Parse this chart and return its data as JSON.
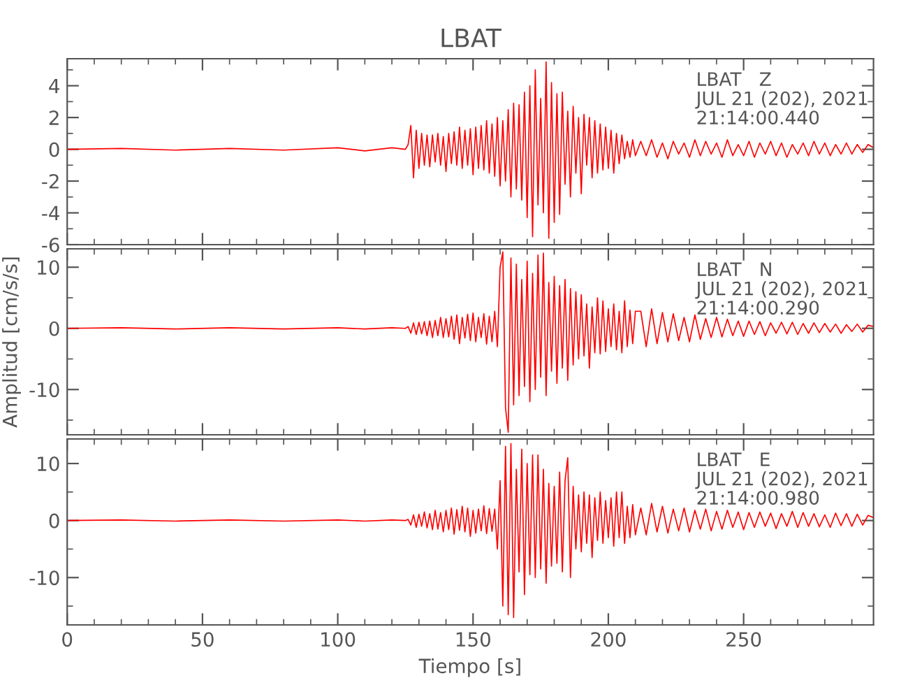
{
  "chart_data": [
    {
      "type": "line",
      "title": "LBAT",
      "annotations": [
        "LBAT   Z\nJUL 21 (202), 2021\n21:14:00.440"
      ],
      "xlim": [
        0,
        298
      ],
      "xticks": [
        0,
        50,
        100,
        150,
        200,
        250
      ],
      "ylim": [
        -6,
        5.7
      ],
      "yticks": [
        -6,
        -4,
        -2,
        0,
        2,
        4
      ],
      "tick_labels": "y",
      "series": [
        {
          "color": "#ff0000",
          "x": [
            0,
            20,
            40,
            60,
            80,
            100,
            110,
            120,
            125,
            126,
            127,
            128,
            129,
            130,
            131,
            132,
            133,
            134,
            135,
            136,
            137,
            138,
            139,
            140,
            141,
            142,
            143,
            144,
            145,
            146,
            147,
            148,
            149,
            150,
            151,
            152,
            153,
            154,
            155,
            156,
            157,
            158,
            159,
            160,
            161,
            162,
            163,
            164,
            165,
            166,
            167,
            168,
            169,
            170,
            171,
            172,
            173,
            174,
            175,
            176,
            177,
            178,
            179,
            180,
            181,
            182,
            183,
            184,
            185,
            186,
            187,
            188,
            189,
            190,
            191,
            192,
            193,
            194,
            195,
            196,
            197,
            198,
            199,
            200,
            201,
            202,
            203,
            204,
            205,
            206,
            207,
            208,
            209,
            210,
            212,
            214,
            216,
            218,
            220,
            222,
            224,
            226,
            228,
            230,
            232,
            234,
            236,
            238,
            240,
            242,
            244,
            246,
            248,
            250,
            252,
            254,
            256,
            258,
            260,
            262,
            264,
            266,
            268,
            270,
            272,
            274,
            276,
            278,
            280,
            282,
            284,
            286,
            288,
            290,
            292,
            294,
            296,
            298
          ],
          "values": [
            0,
            0.05,
            -0.05,
            0.05,
            -0.05,
            0.1,
            -0.1,
            0.1,
            0,
            0.3,
            1.5,
            -1.8,
            1.2,
            -1.2,
            1.0,
            -1.0,
            0.9,
            -1.1,
            0.9,
            -0.8,
            1.0,
            -1.0,
            0.8,
            -1.4,
            1.0,
            -0.9,
            1.1,
            -1.0,
            1.4,
            -1.2,
            1.2,
            -1.0,
            1.3,
            -1.6,
            1.4,
            -1.2,
            1.5,
            -1.3,
            1.8,
            -1.5,
            1.6,
            -1.7,
            2.0,
            -2.3,
            1.8,
            -2.0,
            2.5,
            -3.0,
            2.9,
            -2.5,
            2.8,
            -3.2,
            3.6,
            -4.3,
            4.0,
            -5.5,
            5.0,
            -3.5,
            3.2,
            -4.0,
            5.5,
            -5.6,
            4.2,
            -4.6,
            3.5,
            -4.1,
            3.6,
            -2.2,
            2.4,
            -3.0,
            2.7,
            -1.5,
            2.0,
            -2.8,
            2.2,
            -1.0,
            2.0,
            -1.8,
            1.8,
            -1.5,
            1.6,
            -1.3,
            1.4,
            -1.2,
            1.2,
            -1.5,
            1.0,
            -0.9,
            0.9,
            -0.6,
            0.5,
            -0.5,
            0.6,
            -0.4,
            0.5,
            -0.4,
            0.6,
            -0.5,
            0.4,
            -0.6,
            0.5,
            -0.3,
            0.4,
            -0.5,
            0.6,
            -0.4,
            0.5,
            -0.3,
            0.4,
            -0.5,
            0.6,
            -0.4,
            0.3,
            -0.4,
            0.5,
            -0.5,
            0.4,
            -0.3,
            0.5,
            -0.4,
            0.4,
            -0.5,
            0.3,
            -0.3,
            0.4,
            -0.4,
            0.5,
            -0.3,
            0.4,
            -0.4,
            0.3,
            -0.3,
            0.4,
            -0.3,
            0.3,
            -0.2,
            0.3,
            0.1
          ]
        }
      ]
    },
    {
      "type": "line",
      "ylabel": "Amplitud [cm/s/s]",
      "annotations": [
        "LBAT   N\nJUL 21 (202), 2021\n21:14:00.290"
      ],
      "xlim": [
        0,
        298
      ],
      "xticks": [
        0,
        50,
        100,
        150,
        200,
        250
      ],
      "ylim": [
        -17.4,
        13
      ],
      "yticks": [
        -10,
        0,
        10
      ],
      "tick_labels": "y",
      "series": [
        {
          "color": "#ff0000",
          "x": [
            0,
            20,
            40,
            60,
            80,
            100,
            110,
            120,
            125,
            126,
            127,
            128,
            129,
            130,
            131,
            132,
            133,
            134,
            135,
            136,
            137,
            138,
            139,
            140,
            141,
            142,
            143,
            144,
            145,
            146,
            147,
            148,
            149,
            150,
            151,
            152,
            153,
            154,
            155,
            156,
            157,
            158,
            159,
            160,
            161,
            162,
            163,
            164,
            165,
            166,
            167,
            168,
            169,
            170,
            171,
            172,
            173,
            174,
            175,
            176,
            177,
            178,
            179,
            180,
            181,
            182,
            183,
            184,
            185,
            186,
            187,
            188,
            189,
            190,
            191,
            192,
            193,
            194,
            195,
            196,
            197,
            198,
            199,
            200,
            201,
            202,
            203,
            204,
            205,
            206,
            207,
            208,
            209,
            210,
            212,
            214,
            216,
            218,
            220,
            222,
            224,
            226,
            228,
            230,
            232,
            234,
            236,
            238,
            240,
            242,
            244,
            246,
            248,
            250,
            252,
            254,
            256,
            258,
            260,
            262,
            264,
            266,
            268,
            270,
            272,
            274,
            276,
            278,
            280,
            282,
            284,
            286,
            288,
            290,
            292,
            294,
            296,
            298
          ],
          "values": [
            0,
            0.1,
            -0.1,
            0.1,
            -0.1,
            0.1,
            -0.1,
            0.1,
            0,
            0.3,
            -0.8,
            0.9,
            -1.0,
            1.0,
            -0.9,
            1.1,
            -1.2,
            1.2,
            -1.5,
            1.3,
            -1.2,
            1.8,
            -1.5,
            1.6,
            -1.4,
            2.0,
            -1.8,
            2.2,
            -2.5,
            1.8,
            -1.6,
            2.3,
            -2.0,
            2.5,
            -2.2,
            1.8,
            -1.5,
            2.4,
            -2.6,
            2.0,
            -2.2,
            2.8,
            -3.0,
            10.0,
            12.5,
            -13.0,
            -17.0,
            11.5,
            -12.5,
            10.5,
            -11.0,
            8.0,
            -9.5,
            11.0,
            -12.0,
            9.0,
            -10.0,
            12.0,
            -8.0,
            12.3,
            -11.0,
            7.5,
            -7.0,
            8.5,
            -9.0,
            7.0,
            -6.5,
            8.0,
            -8.5,
            6.5,
            -6.0,
            6.0,
            -5.0,
            5.5,
            -4.5,
            4.0,
            -6.5,
            3.5,
            -4.0,
            5.0,
            -4.2,
            4.5,
            -3.8,
            3.2,
            -3.0,
            4.0,
            -3.5,
            2.8,
            -4.0,
            4.5,
            -3.0,
            3.0,
            -2.5,
            2.8,
            2.8,
            -3.0,
            3.2,
            -2.5,
            2.6,
            -2.2,
            2.4,
            -2.0,
            1.8,
            -2.2,
            2.2,
            -1.8,
            1.6,
            -1.5,
            1.8,
            -1.4,
            1.5,
            -1.2,
            1.2,
            -1.3,
            1.2,
            -1.0,
            1.1,
            -1.2,
            0.9,
            -0.8,
            1.0,
            -0.9,
            1.0,
            -1.0,
            0.8,
            -0.8,
            0.9,
            -0.7,
            0.8,
            -0.6,
            0.7,
            -0.8,
            0.6,
            -0.5,
            0.7,
            -0.6,
            0.5,
            0.3
          ]
        }
      ]
    },
    {
      "type": "line",
      "xlabel": "Tiempo [s]",
      "annotations": [
        "LBAT   E\nJUL 21 (202), 2021\n21:14:00.980"
      ],
      "xlim": [
        0,
        298
      ],
      "xticks": [
        0,
        50,
        100,
        150,
        200,
        250
      ],
      "ylim": [
        -18.3,
        14.3
      ],
      "yticks": [
        -10,
        0,
        10
      ],
      "series": [
        {
          "color": "#ff0000",
          "x": [
            0,
            20,
            40,
            60,
            80,
            100,
            110,
            120,
            125,
            126,
            127,
            128,
            129,
            130,
            131,
            132,
            133,
            134,
            135,
            136,
            137,
            138,
            139,
            140,
            141,
            142,
            143,
            144,
            145,
            146,
            147,
            148,
            149,
            150,
            151,
            152,
            153,
            154,
            155,
            156,
            157,
            158,
            159,
            160,
            161,
            162,
            163,
            164,
            165,
            166,
            167,
            168,
            169,
            170,
            171,
            172,
            173,
            174,
            175,
            176,
            177,
            178,
            179,
            180,
            181,
            182,
            183,
            184,
            185,
            186,
            187,
            188,
            189,
            190,
            191,
            192,
            193,
            194,
            195,
            196,
            197,
            198,
            199,
            200,
            201,
            202,
            203,
            204,
            205,
            206,
            207,
            208,
            209,
            210,
            212,
            214,
            216,
            218,
            220,
            222,
            224,
            226,
            228,
            230,
            232,
            234,
            236,
            238,
            240,
            242,
            244,
            246,
            248,
            250,
            252,
            254,
            256,
            258,
            260,
            262,
            264,
            266,
            268,
            270,
            272,
            274,
            276,
            278,
            280,
            282,
            284,
            286,
            288,
            290,
            292,
            294,
            296,
            298
          ],
          "values": [
            0,
            0.1,
            -0.1,
            0.1,
            -0.1,
            0.1,
            -0.1,
            0.1,
            0,
            0.2,
            -0.8,
            1.0,
            -1.2,
            1.1,
            -1.0,
            1.5,
            -1.3,
            1.2,
            -1.6,
            1.8,
            -1.5,
            1.4,
            -2.0,
            1.8,
            -1.6,
            2.2,
            -2.4,
            1.9,
            -1.7,
            2.5,
            -2.0,
            2.2,
            -2.8,
            1.8,
            -2.2,
            2.0,
            -1.8,
            2.6,
            -2.3,
            2.1,
            -1.9,
            2.0,
            -5.0,
            7.0,
            -15.0,
            13.0,
            -16.5,
            13.5,
            -17.0,
            9.0,
            -9.0,
            12.5,
            -13.0,
            10.0,
            -9.5,
            11.5,
            -10.0,
            11.5,
            -8.5,
            9.0,
            -11.0,
            6.5,
            -8.0,
            6.0,
            -7.5,
            8.5,
            -9.0,
            7.0,
            11.0,
            -10.0,
            6.0,
            -5.0,
            4.5,
            -5.5,
            5.0,
            -4.0,
            4.5,
            -6.5,
            4.0,
            -3.5,
            5.0,
            -4.0,
            3.5,
            -3.0,
            4.0,
            -4.5,
            5.0,
            -3.0,
            5.0,
            -4.0,
            2.5,
            -3.0,
            2.8,
            -2.5,
            2.2,
            -2.5,
            3.0,
            -2.0,
            2.5,
            -2.2,
            2.0,
            -1.8,
            2.2,
            -2.0,
            1.8,
            -1.5,
            2.0,
            -1.8,
            1.6,
            -1.5,
            1.8,
            -1.2,
            1.5,
            -1.6,
            1.4,
            -1.2,
            1.5,
            -1.0,
            1.3,
            -1.4,
            1.2,
            -1.0,
            1.6,
            -1.2,
            1.4,
            -1.0,
            1.2,
            -1.1,
            1.0,
            -1.2,
            1.3,
            -0.9,
            1.2,
            -1.0,
            1.1,
            -0.8,
            0.9,
            0.5
          ]
        }
      ]
    }
  ]
}
